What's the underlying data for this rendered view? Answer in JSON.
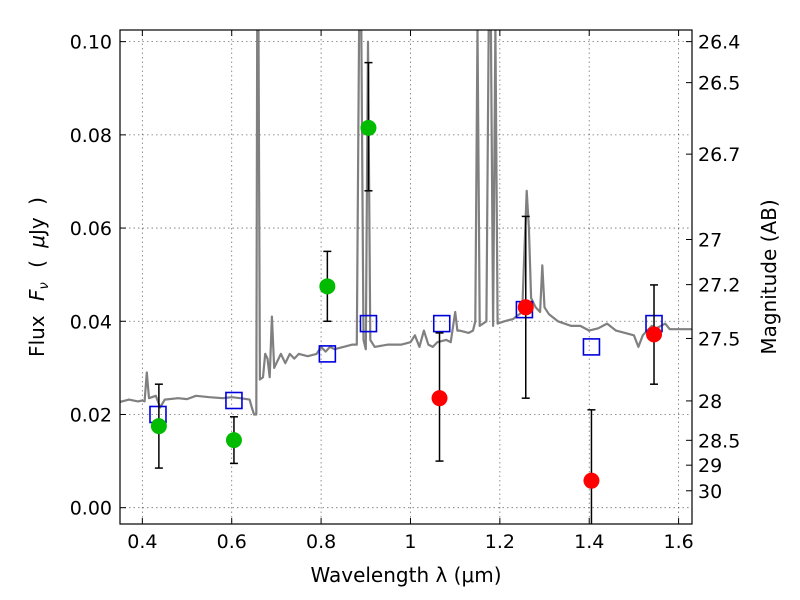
{
  "chart_data": {
    "type": "scatter",
    "xlabel": "Wavelength  λ (μm)",
    "ylabel": "Flux  F_ν  ( μJy )",
    "ylabel_parts": {
      "flux": "Flux",
      "symbol": "F",
      "subscript": "ν",
      "unit_open": "(",
      "unit_mu": "μ",
      "unit_rest": "Jy",
      "unit_close": ")"
    },
    "ylabel_right": "Magnitude (AB)",
    "xlim": [
      0.35,
      1.63
    ],
    "ylim": [
      -0.0035,
      0.1025
    ],
    "grid": true,
    "x_ticks": [
      {
        "v": 0.4,
        "label": "0.4"
      },
      {
        "v": 0.6,
        "label": "0.6"
      },
      {
        "v": 0.8,
        "label": "0.8"
      },
      {
        "v": 1.0,
        "label": "1"
      },
      {
        "v": 1.2,
        "label": "1.2"
      },
      {
        "v": 1.4,
        "label": "1.4"
      },
      {
        "v": 1.6,
        "label": "1.6"
      }
    ],
    "y_ticks": [
      {
        "v": 0.0,
        "label": "0.00"
      },
      {
        "v": 0.02,
        "label": "0.02"
      },
      {
        "v": 0.04,
        "label": "0.04"
      },
      {
        "v": 0.06,
        "label": "0.06"
      },
      {
        "v": 0.08,
        "label": "0.08"
      },
      {
        "v": 0.1,
        "label": "0.10"
      }
    ],
    "mag_ticks": [
      {
        "v": 26.4,
        "label": "26.4"
      },
      {
        "v": 26.5,
        "label": "26.5"
      },
      {
        "v": 26.7,
        "label": "26.7"
      },
      {
        "v": 27.0,
        "label": "27"
      },
      {
        "v": 27.2,
        "label": "27.2"
      },
      {
        "v": 27.5,
        "label": "27.5"
      },
      {
        "v": 28.0,
        "label": "28"
      },
      {
        "v": 28.5,
        "label": "28.5"
      },
      {
        "v": 29.0,
        "label": "29"
      },
      {
        "v": 30.0,
        "label": "30"
      }
    ],
    "series": [
      {
        "kind": "line",
        "color": "#808080",
        "points": [
          [
            0.35,
            0.0227
          ],
          [
            0.37,
            0.0232
          ],
          [
            0.39,
            0.0228
          ],
          [
            0.4,
            0.023
          ],
          [
            0.405,
            0.0228
          ],
          [
            0.41,
            0.029
          ],
          [
            0.415,
            0.0235
          ],
          [
            0.43,
            0.024
          ],
          [
            0.44,
            0.0215
          ],
          [
            0.45,
            0.0232
          ],
          [
            0.48,
            0.0235
          ],
          [
            0.5,
            0.0233
          ],
          [
            0.52,
            0.024
          ],
          [
            0.55,
            0.0237
          ],
          [
            0.58,
            0.0235
          ],
          [
            0.6,
            0.0237
          ],
          [
            0.62,
            0.0235
          ],
          [
            0.64,
            0.0232
          ],
          [
            0.645,
            0.0215
          ],
          [
            0.65,
            0.02
          ],
          [
            0.655,
            0.02
          ],
          [
            0.657,
            0.103
          ],
          [
            0.66,
            0.103
          ],
          [
            0.663,
            0.0275
          ],
          [
            0.67,
            0.028
          ],
          [
            0.675,
            0.033
          ],
          [
            0.68,
            0.032
          ],
          [
            0.685,
            0.028
          ],
          [
            0.69,
            0.041
          ],
          [
            0.695,
            0.03
          ],
          [
            0.7,
            0.031
          ],
          [
            0.71,
            0.033
          ],
          [
            0.72,
            0.031
          ],
          [
            0.73,
            0.033
          ],
          [
            0.74,
            0.032
          ],
          [
            0.75,
            0.033
          ],
          [
            0.77,
            0.0325
          ],
          [
            0.79,
            0.033
          ],
          [
            0.8,
            0.0345
          ],
          [
            0.81,
            0.0335
          ],
          [
            0.82,
            0.0345
          ],
          [
            0.83,
            0.034
          ],
          [
            0.85,
            0.0345
          ],
          [
            0.87,
            0.035
          ],
          [
            0.88,
            0.035
          ],
          [
            0.885,
            0.103
          ],
          [
            0.89,
            0.103
          ],
          [
            0.895,
            0.036
          ],
          [
            0.9,
            0.034
          ],
          [
            0.905,
            0.1
          ],
          [
            0.91,
            0.036
          ],
          [
            0.92,
            0.0345
          ],
          [
            0.95,
            0.035
          ],
          [
            0.98,
            0.035
          ],
          [
            1.0,
            0.0355
          ],
          [
            1.01,
            0.037
          ],
          [
            1.02,
            0.0345
          ],
          [
            1.03,
            0.038
          ],
          [
            1.04,
            0.035
          ],
          [
            1.05,
            0.0345
          ],
          [
            1.06,
            0.0355
          ],
          [
            1.08,
            0.036
          ],
          [
            1.09,
            0.0355
          ],
          [
            1.1,
            0.042
          ],
          [
            1.105,
            0.038
          ],
          [
            1.11,
            0.038
          ],
          [
            1.13,
            0.0375
          ],
          [
            1.14,
            0.038
          ],
          [
            1.145,
            0.04
          ],
          [
            1.15,
            0.103
          ],
          [
            1.155,
            0.039
          ],
          [
            1.17,
            0.04
          ],
          [
            1.175,
            0.103
          ],
          [
            1.18,
            0.103
          ],
          [
            1.185,
            0.039
          ],
          [
            1.19,
            0.103
          ],
          [
            1.195,
            0.0395
          ],
          [
            1.21,
            0.04
          ],
          [
            1.23,
            0.0405
          ],
          [
            1.25,
            0.042
          ],
          [
            1.255,
            0.055
          ],
          [
            1.26,
            0.068
          ],
          [
            1.265,
            0.06
          ],
          [
            1.27,
            0.045
          ],
          [
            1.28,
            0.043
          ],
          [
            1.29,
            0.042
          ],
          [
            1.295,
            0.052
          ],
          [
            1.3,
            0.043
          ],
          [
            1.31,
            0.0415
          ],
          [
            1.33,
            0.04
          ],
          [
            1.36,
            0.039
          ],
          [
            1.38,
            0.039
          ],
          [
            1.4,
            0.038
          ],
          [
            1.42,
            0.0385
          ],
          [
            1.44,
            0.0395
          ],
          [
            1.46,
            0.038
          ],
          [
            1.48,
            0.0375
          ],
          [
            1.5,
            0.037
          ],
          [
            1.51,
            0.0345
          ],
          [
            1.52,
            0.037
          ],
          [
            1.54,
            0.039
          ],
          [
            1.55,
            0.0385
          ],
          [
            1.57,
            0.0395
          ],
          [
            1.58,
            0.0383
          ],
          [
            1.6,
            0.0383
          ],
          [
            1.63,
            0.0383
          ]
        ]
      },
      {
        "kind": "squares",
        "color": "#0000dd",
        "points": [
          [
            0.435,
            0.02
          ],
          [
            0.605,
            0.023
          ],
          [
            0.814,
            0.033
          ],
          [
            0.906,
            0.0395
          ],
          [
            1.07,
            0.0395
          ],
          [
            1.255,
            0.0425
          ],
          [
            1.405,
            0.0345
          ],
          [
            1.545,
            0.0395
          ]
        ]
      },
      {
        "kind": "circles",
        "color": "#00bb00",
        "points": [
          {
            "x": 0.437,
            "y": 0.0175,
            "lo": 0.0085,
            "hi": 0.0265
          },
          {
            "x": 0.605,
            "y": 0.0145,
            "lo": 0.0095,
            "hi": 0.0195
          },
          {
            "x": 0.814,
            "y": 0.0475,
            "lo": 0.04,
            "hi": 0.055
          },
          {
            "x": 0.906,
            "y": 0.0815,
            "lo": 0.068,
            "hi": 0.0955
          }
        ]
      },
      {
        "kind": "circles",
        "color": "#ff0000",
        "points": [
          {
            "x": 1.065,
            "y": 0.0235,
            "lo": 0.01,
            "hi": 0.0375
          },
          {
            "x": 1.258,
            "y": 0.043,
            "lo": 0.0235,
            "hi": 0.0625
          },
          {
            "x": 1.405,
            "y": 0.0058,
            "lo": -0.004,
            "hi": 0.021
          },
          {
            "x": 1.545,
            "y": 0.0372,
            "lo": 0.0265,
            "hi": 0.0478
          }
        ]
      }
    ]
  }
}
